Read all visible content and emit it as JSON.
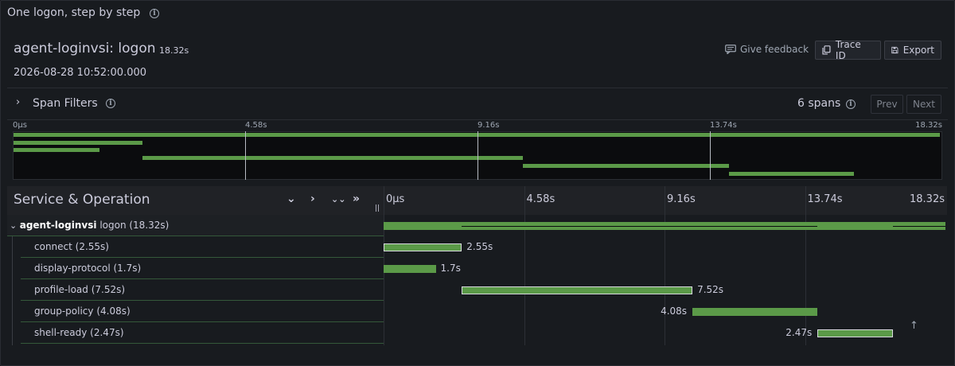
{
  "panel": {
    "title": "One logon, step by step"
  },
  "trace": {
    "name": "agent-loginvsi: logon",
    "duration": "18.32s",
    "start_time": "2026-08-28 10:52:00.000"
  },
  "actions": {
    "feedback_label": "Give feedback",
    "trace_id_label": "Trace ID",
    "export_label": "Export"
  },
  "filters": {
    "label": "Span Filters",
    "span_count": "6 spans",
    "prev_label": "Prev",
    "next_label": "Next"
  },
  "timeline": {
    "mini_ticks": [
      "0µs",
      "4.58s",
      "9.16s",
      "13.74s",
      "18.32s"
    ],
    "ticks": [
      "0µs",
      "4.58s",
      "9.16s",
      "13.74s",
      "18.32s"
    ],
    "total_seconds": 18.32
  },
  "table_header": {
    "title": "Service & Operation",
    "controls": [
      "⌄",
      "›",
      "⌄⌄",
      "»"
    ]
  },
  "spans": [
    {
      "service": "agent-loginvsi",
      "operation": "logon (18.32s)",
      "start": 0.0,
      "duration": 18.32,
      "duration_label": "",
      "root": true
    },
    {
      "service": "",
      "operation": "connect (2.55s)",
      "start": 0.0,
      "duration": 2.55,
      "duration_label": "2.55s",
      "root": false
    },
    {
      "service": "",
      "operation": "display-protocol (1.7s)",
      "start": 0.0,
      "duration": 1.7,
      "duration_label": "1.7s",
      "root": false
    },
    {
      "service": "",
      "operation": "profile-load (7.52s)",
      "start": 2.55,
      "duration": 7.52,
      "duration_label": "7.52s",
      "root": false
    },
    {
      "service": "",
      "operation": "group-policy (4.08s)",
      "start": 10.07,
      "duration": 4.08,
      "duration_label": "4.08s",
      "root": false
    },
    {
      "service": "",
      "operation": "shell-ready (2.47s)",
      "start": 14.15,
      "duration": 2.47,
      "duration_label": "2.47s",
      "root": false
    }
  ],
  "colors": {
    "span_bar": "#5b9a48",
    "row_divider": "#34583a",
    "background": "#181b1f"
  }
}
